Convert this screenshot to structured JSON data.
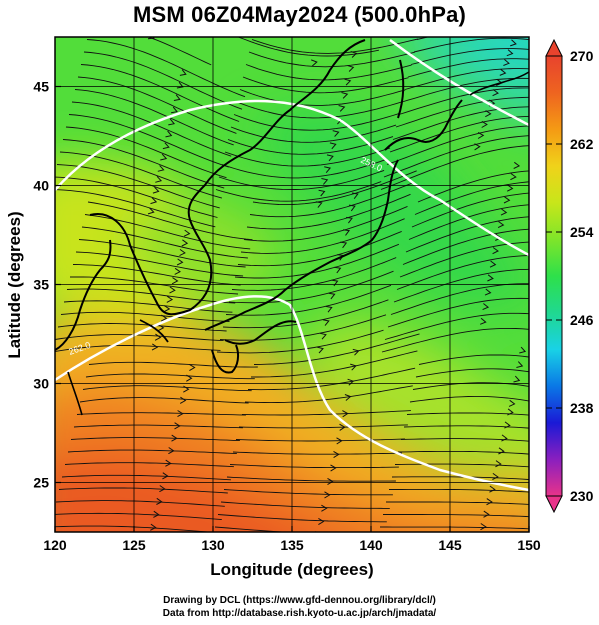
{
  "title": "MSM 06Z04May2024 (500.0hPa)",
  "axes": {
    "xlabel": "Longitude (degrees)",
    "ylabel": "Latitude  (degrees)",
    "xticks": [
      "120",
      "125",
      "130",
      "135",
      "140",
      "145",
      "150"
    ],
    "yticks": [
      "25",
      "30",
      "35",
      "40",
      "45"
    ]
  },
  "colorbar": {
    "ticks": [
      "270",
      "262",
      "254",
      "246",
      "238",
      "230"
    ],
    "colors": [
      "#e8338a",
      "#8a1fbf",
      "#1a1ad6",
      "#0a78e6",
      "#19d2e6",
      "#20d890",
      "#2ee04a",
      "#7fe52a",
      "#c8e61a",
      "#f0d21a",
      "#f59a14",
      "#ee6420",
      "#e8432d"
    ]
  },
  "chart_data": {
    "type": "heatmap",
    "title": "MSM 06Z04May2024 (500.0hPa)",
    "xlabel": "Longitude (degrees)",
    "ylabel": "Latitude  (degrees)",
    "xlim": [
      120,
      150
    ],
    "ylim": [
      22.5,
      47.5
    ],
    "x": [
      120,
      125,
      130,
      135,
      140,
      145,
      150
    ],
    "y": [
      25,
      30,
      35,
      40,
      45
    ],
    "colorbar_range": [
      230,
      270
    ],
    "colorbar_ticks": [
      270,
      262,
      254,
      246,
      238,
      230
    ],
    "grid": true,
    "overlays": [
      "streamlines",
      "coastlines",
      "contours"
    ],
    "contour_labels": [
      "262.0",
      "258.0"
    ]
  },
  "credits": {
    "line1": "Drawing by DCL (https://www.gfd-dennou.org/library/dcl/)",
    "line2": "Data from http://database.rish.kyoto-u.ac.jp/arch/jmadata/"
  }
}
